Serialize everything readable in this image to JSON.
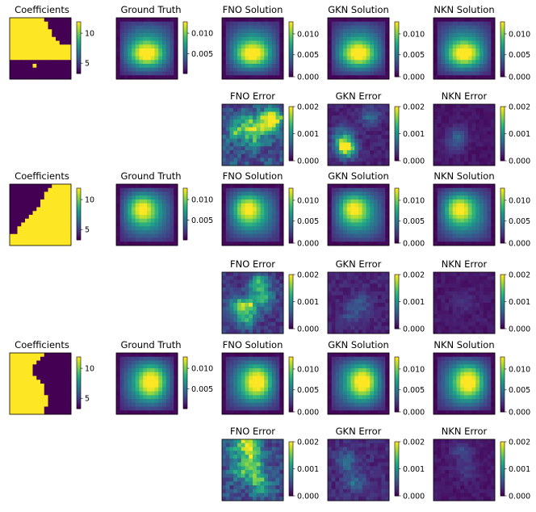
{
  "colors": {
    "viridis": [
      "#440154",
      "#482878",
      "#3e4989",
      "#31688e",
      "#26828e",
      "#1f9e89",
      "#35b779",
      "#6ece58",
      "#b5de2b",
      "#fde725"
    ]
  },
  "rows": [
    {
      "coeff": {
        "title": "Coefficients",
        "cbar_ticks": [
          "10",
          "5"
        ],
        "mask": [
          "1111111110000000",
          "1111111111000000",
          "1111111111000000",
          "1111111111100000",
          "1111111111100000",
          "1111111111110000",
          "1111111111111000",
          "1111111111111111",
          "1111111111111111",
          "1111111111111111",
          "1111111111111111",
          "0000000000000000",
          "0000001000000000",
          "0000000000000000",
          "0000000000000000",
          "0000000000000000"
        ]
      },
      "solution_cbar_ticks": [
        "0.010",
        "0.005"
      ],
      "solution_cbar_ticks_zero": [
        "0.010",
        "0.005",
        "0.000"
      ],
      "error_cbar_ticks": [
        "0.002",
        "0.001",
        "0.000"
      ],
      "ground_truth": {
        "title": "Ground Truth",
        "peak": [
          0.5,
          0.62
        ],
        "spread": [
          0.26,
          0.16
        ],
        "peak_value": 0.012
      },
      "fno_solution": {
        "title": "FNO Solution"
      },
      "gkn_solution": {
        "title": "GKN Solution"
      },
      "nkn_solution": {
        "title": "NKN Solution"
      },
      "fno_error": {
        "title": "FNO Error",
        "level": 0.32,
        "hotspots": [
          [
            0.85,
            0.25,
            0.85
          ],
          [
            0.45,
            0.35,
            0.6
          ],
          [
            0.25,
            0.45,
            0.5
          ],
          [
            0.55,
            0.55,
            0.45
          ],
          [
            0.7,
            0.3,
            0.55
          ]
        ]
      },
      "gkn_error": {
        "title": "GKN Error",
        "level": 0.12,
        "hotspots": [
          [
            0.3,
            0.72,
            1.0
          ],
          [
            0.25,
            0.55,
            0.55
          ],
          [
            0.7,
            0.2,
            0.3
          ]
        ]
      },
      "nkn_error": {
        "title": "NKN Error",
        "level": 0.07,
        "hotspots": [
          [
            0.4,
            0.5,
            0.25
          ],
          [
            0.35,
            0.65,
            0.2
          ]
        ]
      }
    },
    {
      "coeff": {
        "title": "Coefficients",
        "cbar_ticks": [
          "10",
          "5"
        ],
        "mask": [
          "0000000000011111",
          "0000000000111111",
          "0000000001111111",
          "0000000001111111",
          "0000000011111111",
          "0000000011111111",
          "0000000111111111",
          "0000001111111111",
          "0000011111111111",
          "0000111111111111",
          "0001111111111111",
          "0011111111111111",
          "0011111111111111",
          "1111111111111111",
          "1111111111111111",
          "1111111111111111"
        ]
      },
      "solution_cbar_ticks": [
        "0.010",
        "0.005"
      ],
      "solution_cbar_ticks_zero": [
        "0.010",
        "0.005",
        "0.000"
      ],
      "error_cbar_ticks": [
        "0.002",
        "0.001",
        "0.000"
      ],
      "ground_truth": {
        "title": "Ground Truth",
        "peak": [
          0.38,
          0.35
        ],
        "spread": [
          0.2,
          0.2
        ],
        "peak_value": 0.012
      },
      "fno_solution": {
        "title": "FNO Solution"
      },
      "gkn_solution": {
        "title": "GKN Solution"
      },
      "nkn_solution": {
        "title": "NKN Solution"
      },
      "fno_error": {
        "title": "FNO Error",
        "level": 0.2,
        "hotspots": [
          [
            0.6,
            0.2,
            0.7
          ],
          [
            0.45,
            0.55,
            0.6
          ],
          [
            0.25,
            0.55,
            0.5
          ],
          [
            0.4,
            0.75,
            0.55
          ],
          [
            0.7,
            0.45,
            0.45
          ]
        ]
      },
      "gkn_error": {
        "title": "GKN Error",
        "level": 0.12,
        "hotspots": [
          [
            0.55,
            0.5,
            0.25
          ],
          [
            0.4,
            0.7,
            0.2
          ]
        ]
      },
      "nkn_error": {
        "title": "NKN Error",
        "level": 0.08,
        "hotspots": [
          [
            0.5,
            0.5,
            0.12
          ]
        ]
      }
    },
    {
      "coeff": {
        "title": "Coefficients",
        "cbar_ticks": [
          "10",
          "5"
        ],
        "mask": [
          "1111111110000000",
          "1111111100000000",
          "1111111000000000",
          "1111110000000000",
          "1111110000000000",
          "1111110000000000",
          "1111111000000000",
          "1111111100000000",
          "1111111110000000",
          "1111111110000000",
          "1111111110000000",
          "1111111111000000",
          "1111111111000000",
          "1111111111000000",
          "1111111110000000",
          "1111111110000000"
        ]
      },
      "solution_cbar_ticks": [
        "0.010",
        "0.005"
      ],
      "solution_cbar_ticks_zero": [
        "0.010",
        "0.005",
        "0.000"
      ],
      "error_cbar_ticks": [
        "0.002",
        "0.001",
        "0.000"
      ],
      "ground_truth": {
        "title": "Ground Truth",
        "peak": [
          0.62,
          0.45
        ],
        "spread": [
          0.2,
          0.25
        ],
        "peak_value": 0.012
      },
      "fno_solution": {
        "title": "FNO Solution"
      },
      "gkn_solution": {
        "title": "GKN Solution"
      },
      "nkn_solution": {
        "title": "NKN Solution"
      },
      "fno_error": {
        "title": "FNO Error",
        "level": 0.3,
        "hotspots": [
          [
            0.45,
            0.08,
            1.0
          ],
          [
            0.5,
            0.35,
            0.65
          ],
          [
            0.55,
            0.6,
            0.55
          ],
          [
            0.3,
            0.5,
            0.45
          ],
          [
            0.65,
            0.8,
            0.4
          ],
          [
            0.2,
            0.2,
            0.35
          ]
        ]
      },
      "gkn_error": {
        "title": "GKN Error",
        "level": 0.15,
        "hotspots": [
          [
            0.3,
            0.35,
            0.35
          ],
          [
            0.45,
            0.7,
            0.3
          ]
        ]
      },
      "nkn_error": {
        "title": "NKN Error",
        "level": 0.08,
        "hotspots": [
          [
            0.45,
            0.2,
            0.2
          ],
          [
            0.55,
            0.5,
            0.15
          ]
        ]
      }
    }
  ]
}
